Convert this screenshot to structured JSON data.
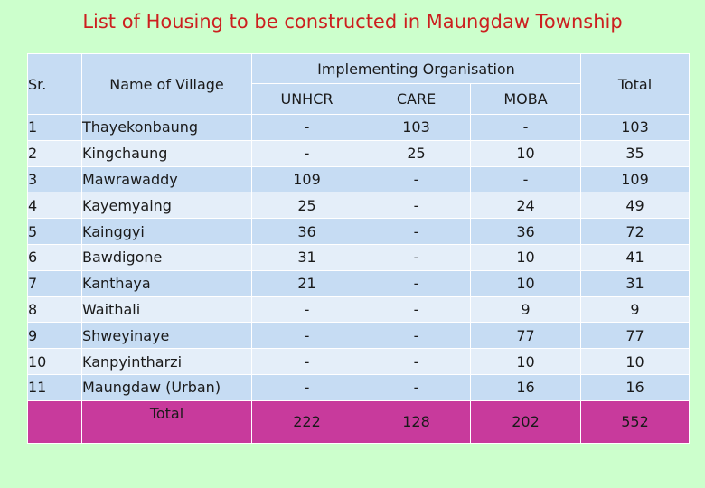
{
  "title": "List of Housing to be constructed in Maungdaw Township",
  "headers": {
    "sr": "Sr.",
    "name": "Name of Village",
    "group": "Implementing Organisation",
    "org1": "UNHCR",
    "org2": "CARE",
    "org3": "MOBA",
    "total": "Total"
  },
  "rows": [
    {
      "sr": "1",
      "name": "Thayekonbaung",
      "unhcr": "-",
      "care": "103",
      "moba": "-",
      "total": "103"
    },
    {
      "sr": "2",
      "name": "Kingchaung",
      "unhcr": "-",
      "care": "25",
      "moba": "10",
      "total": "35"
    },
    {
      "sr": "3",
      "name": "Mawrawaddy",
      "unhcr": "109",
      "care": "-",
      "moba": "-",
      "total": "109"
    },
    {
      "sr": "4",
      "name": "Kayemyaing",
      "unhcr": "25",
      "care": "-",
      "moba": "24",
      "total": "49"
    },
    {
      "sr": "5",
      "name": "Kainggyi",
      "unhcr": "36",
      "care": "-",
      "moba": "36",
      "total": "72"
    },
    {
      "sr": "6",
      "name": "Bawdigone",
      "unhcr": "31",
      "care": "-",
      "moba": "10",
      "total": "41"
    },
    {
      "sr": "7",
      "name": "Kanthaya",
      "unhcr": "21",
      "care": "-",
      "moba": "10",
      "total": "31"
    },
    {
      "sr": "8",
      "name": "Waithali",
      "unhcr": "-",
      "care": "-",
      "moba": "9",
      "total": "9"
    },
    {
      "sr": "9",
      "name": "Shweyinaye",
      "unhcr": "-",
      "care": "-",
      "moba": "77",
      "total": "77"
    },
    {
      "sr": "10",
      "name": "Kanpyintharzi",
      "unhcr": "-",
      "care": "-",
      "moba": "10",
      "total": "10"
    },
    {
      "sr": "11",
      "name": "Maungdaw (Urban)",
      "unhcr": "-",
      "care": "-",
      "moba": "16",
      "total": "16"
    }
  ],
  "totals": {
    "label": "Total",
    "unhcr": "222",
    "care": "128",
    "moba": "202",
    "total": "552"
  },
  "colors": {
    "background": "#ccffcc",
    "title": "#cc1f1f",
    "row_dark": "#c6dcf3",
    "row_light": "#e4eef9",
    "total_row": "#c83a9c"
  }
}
